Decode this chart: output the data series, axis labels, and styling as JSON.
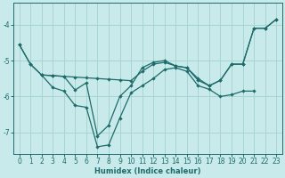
{
  "xlabel": "Humidex (Indice chaleur)",
  "bg_color": "#c8eaea",
  "line_color": "#1e6b6b",
  "grid_color": "#a8d4d4",
  "xlim": [
    -0.5,
    23.5
  ],
  "ylim": [
    -7.6,
    -3.4
  ],
  "yticks": [
    -7,
    -6,
    -5,
    -4
  ],
  "xticks": [
    0,
    1,
    2,
    3,
    4,
    5,
    6,
    7,
    8,
    9,
    10,
    11,
    12,
    13,
    14,
    15,
    16,
    17,
    18,
    19,
    20,
    21,
    22,
    23
  ],
  "lines": [
    {
      "x": [
        0,
        1,
        2,
        3,
        4,
        5,
        6,
        7,
        8,
        9,
        10,
        11,
        12,
        13,
        14,
        15,
        16,
        17,
        18,
        19,
        20,
        21,
        22,
        23
      ],
      "y": [
        -4.55,
        -5.1,
        -5.4,
        -5.42,
        -5.44,
        -5.46,
        -5.48,
        -5.5,
        -5.52,
        -5.54,
        -5.56,
        -5.3,
        -5.1,
        -5.05,
        -5.15,
        -5.2,
        -5.55,
        -5.7,
        -5.55,
        -5.1,
        -5.1,
        -4.1,
        -4.1,
        -3.85
      ]
    },
    {
      "x": [
        0,
        1,
        2,
        3,
        4,
        5,
        6,
        7,
        8,
        9,
        10,
        11,
        12,
        13,
        14,
        15,
        16,
        17,
        18,
        19,
        20,
        21,
        22,
        23
      ],
      "y": [
        -4.55,
        -5.1,
        -5.4,
        -5.42,
        -5.44,
        -5.82,
        -5.62,
        -7.1,
        -6.8,
        -6.0,
        -5.7,
        -5.2,
        -5.05,
        -5.0,
        -5.15,
        -5.2,
        -5.5,
        -5.7,
        -5.55,
        -5.1,
        -5.1,
        -4.1,
        -4.1,
        -3.85
      ]
    },
    {
      "x": [
        2,
        3,
        4,
        5,
        6,
        7,
        8,
        9,
        10,
        11,
        12,
        13,
        14,
        15,
        16,
        17,
        18,
        19,
        20,
        21
      ],
      "y": [
        -5.4,
        -5.75,
        -5.85,
        -6.25,
        -6.3,
        -7.4,
        -7.35,
        -6.6,
        -5.9,
        -5.7,
        -5.5,
        -5.25,
        -5.2,
        -5.3,
        -5.7,
        -5.8,
        -6.0,
        -5.95,
        -5.85,
        -5.85
      ]
    }
  ]
}
